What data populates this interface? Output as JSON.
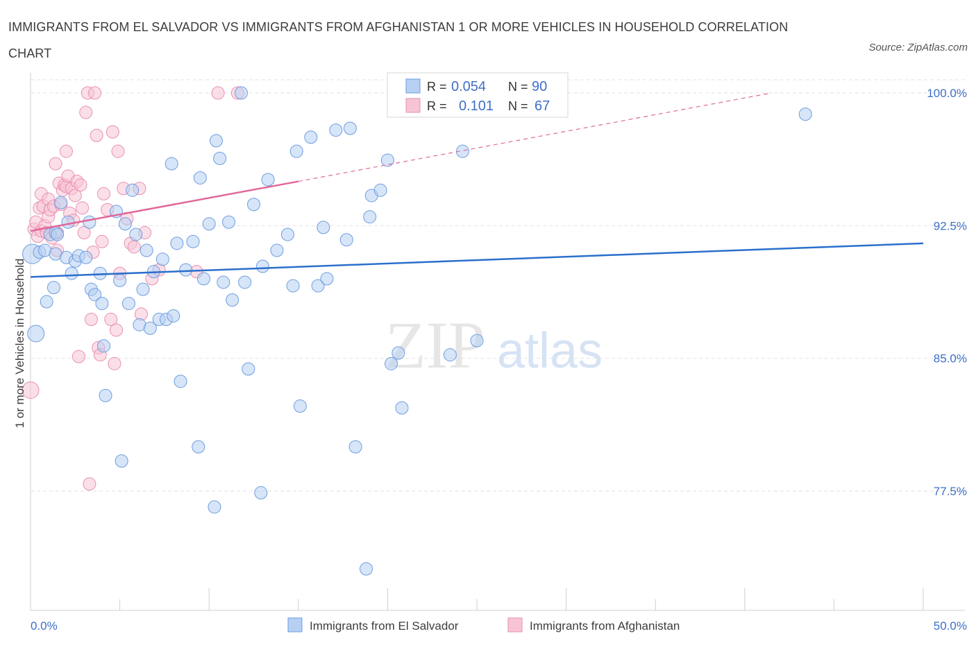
{
  "title": "IMMIGRANTS FROM EL SALVADOR VS IMMIGRANTS FROM AFGHANISTAN 1 OR MORE VEHICLES IN HOUSEHOLD CORRELATION CHART",
  "source": "Source: ZipAtlas.com",
  "watermark": {
    "zip": "ZIP",
    "atlas": "atlas"
  },
  "colors": {
    "blue": "#6d9de0",
    "blue_fill": "#b7cff2",
    "blue_line": "#2a6fcc",
    "pink": "#e98fae",
    "pink_fill": "#f7c4d6",
    "pink_line": "#e0689a",
    "tick": "#3d6fc9"
  },
  "legend_box": {
    "rows": [
      {
        "r_label": "R =",
        "r_value": "0.054",
        "n_label": "N =",
        "n_value": "90"
      },
      {
        "r_label": "R =",
        "r_value": "0.101",
        "n_label": "N =",
        "n_value": "67"
      }
    ]
  },
  "bottom_legend": [
    "Immigrants from El Salvador",
    "Immigrants from Afghanistan"
  ],
  "chart_data": {
    "type": "scatter",
    "title": "IMMIGRANTS FROM EL SALVADOR VS IMMIGRANTS FROM AFGHANISTAN 1 OR MORE VEHICLES IN HOUSEHOLD CORRELATION CHART",
    "xlabel": "",
    "ylabel": "1 or more Vehicles in Household",
    "xlim": [
      0,
      50
    ],
    "ylim": [
      70,
      101
    ],
    "x_tick_labels": [
      "0.0%",
      "50.0%"
    ],
    "y_ticks": [
      77.5,
      85.0,
      92.5,
      100.0
    ],
    "y_tick_labels": [
      "77.5%",
      "85.0%",
      "92.5%",
      "100.0%"
    ],
    "grid": true,
    "series": [
      {
        "name": "Immigrants from El Salvador",
        "R": 0.054,
        "N": 90,
        "trend": {
          "x": [
            0,
            50
          ],
          "y": [
            89.6,
            91.5
          ]
        },
        "points": [
          [
            0.1,
            90.9
          ],
          [
            0.3,
            86.4
          ],
          [
            0.5,
            91.0
          ],
          [
            0.8,
            91.1
          ],
          [
            0.9,
            88.2
          ],
          [
            1.1,
            92.0
          ],
          [
            1.3,
            89.0
          ],
          [
            1.4,
            92.1
          ],
          [
            1.4,
            90.9
          ],
          [
            1.5,
            92.0
          ],
          [
            1.7,
            93.8
          ],
          [
            2.0,
            90.7
          ],
          [
            2.1,
            92.7
          ],
          [
            2.3,
            89.8
          ],
          [
            2.5,
            90.5
          ],
          [
            2.7,
            90.8
          ],
          [
            3.1,
            90.7
          ],
          [
            3.3,
            92.7
          ],
          [
            3.4,
            88.9
          ],
          [
            3.6,
            88.6
          ],
          [
            3.9,
            89.8
          ],
          [
            4.0,
            88.1
          ],
          [
            4.1,
            85.7
          ],
          [
            4.2,
            82.9
          ],
          [
            4.8,
            93.3
          ],
          [
            5.0,
            89.4
          ],
          [
            5.1,
            79.2
          ],
          [
            5.3,
            92.6
          ],
          [
            5.5,
            88.1
          ],
          [
            5.7,
            94.5
          ],
          [
            5.9,
            92.0
          ],
          [
            6.1,
            86.9
          ],
          [
            6.3,
            88.9
          ],
          [
            6.5,
            91.1
          ],
          [
            6.7,
            86.7
          ],
          [
            6.9,
            89.9
          ],
          [
            7.2,
            87.2
          ],
          [
            7.4,
            90.6
          ],
          [
            7.6,
            87.2
          ],
          [
            7.9,
            96.0
          ],
          [
            8.0,
            87.4
          ],
          [
            8.2,
            91.5
          ],
          [
            8.4,
            83.7
          ],
          [
            8.7,
            90.0
          ],
          [
            9.1,
            91.6
          ],
          [
            9.4,
            80.0
          ],
          [
            9.5,
            95.2
          ],
          [
            9.7,
            89.5
          ],
          [
            10.0,
            92.6
          ],
          [
            10.3,
            76.6
          ],
          [
            10.4,
            97.3
          ],
          [
            10.6,
            96.3
          ],
          [
            10.8,
            89.3
          ],
          [
            11.1,
            92.7
          ],
          [
            11.3,
            88.3
          ],
          [
            11.8,
            100.0
          ],
          [
            12.0,
            89.3
          ],
          [
            12.2,
            84.4
          ],
          [
            12.5,
            93.7
          ],
          [
            12.9,
            77.4
          ],
          [
            13.0,
            90.2
          ],
          [
            13.3,
            95.1
          ],
          [
            13.8,
            91.1
          ],
          [
            14.4,
            92.0
          ],
          [
            14.7,
            89.1
          ],
          [
            14.9,
            96.7
          ],
          [
            15.1,
            82.3
          ],
          [
            15.7,
            97.5
          ],
          [
            16.1,
            89.1
          ],
          [
            16.4,
            92.4
          ],
          [
            16.6,
            89.5
          ],
          [
            17.1,
            97.9
          ],
          [
            17.7,
            91.7
          ],
          [
            17.9,
            98.0
          ],
          [
            18.2,
            80.0
          ],
          [
            18.8,
            73.1
          ],
          [
            19.0,
            93.0
          ],
          [
            19.1,
            94.2
          ],
          [
            19.6,
            94.5
          ],
          [
            20.0,
            96.2
          ],
          [
            20.2,
            84.7
          ],
          [
            20.6,
            85.3
          ],
          [
            20.8,
            82.2
          ],
          [
            23.5,
            85.2
          ],
          [
            24.2,
            96.7
          ],
          [
            25.0,
            86.0
          ],
          [
            43.4,
            98.8
          ]
        ]
      },
      {
        "name": "Immigrants from Afghanistan",
        "R": 0.101,
        "N": 67,
        "trend": {
          "x": [
            0,
            15
          ],
          "y": [
            92.2,
            95.0
          ]
        },
        "trend_dashed": {
          "x": [
            15,
            41.5
          ],
          "y": [
            95.0,
            100.0
          ]
        },
        "points": [
          [
            0.0,
            83.2
          ],
          [
            0.2,
            92.3
          ],
          [
            0.3,
            92.7
          ],
          [
            0.4,
            91.9
          ],
          [
            0.5,
            93.5
          ],
          [
            0.6,
            94.3
          ],
          [
            0.6,
            92.2
          ],
          [
            0.7,
            93.6
          ],
          [
            0.8,
            92.5
          ],
          [
            0.9,
            92.1
          ],
          [
            1.0,
            93.0
          ],
          [
            1.0,
            94.0
          ],
          [
            1.1,
            93.4
          ],
          [
            1.2,
            91.8
          ],
          [
            1.3,
            93.6
          ],
          [
            1.4,
            96.0
          ],
          [
            1.5,
            92.1
          ],
          [
            1.5,
            91.1
          ],
          [
            1.6,
            94.9
          ],
          [
            1.7,
            93.7
          ],
          [
            1.8,
            94.5
          ],
          [
            1.9,
            94.8
          ],
          [
            2.0,
            96.7
          ],
          [
            2.0,
            94.7
          ],
          [
            2.1,
            95.3
          ],
          [
            2.2,
            93.2
          ],
          [
            2.3,
            94.6
          ],
          [
            2.4,
            92.8
          ],
          [
            2.5,
            94.2
          ],
          [
            2.6,
            95.0
          ],
          [
            2.7,
            85.1
          ],
          [
            2.8,
            94.8
          ],
          [
            2.9,
            93.5
          ],
          [
            3.0,
            92.1
          ],
          [
            3.1,
            98.9
          ],
          [
            3.2,
            100.0
          ],
          [
            3.3,
            77.9
          ],
          [
            3.4,
            87.2
          ],
          [
            3.5,
            91.0
          ],
          [
            3.6,
            100.0
          ],
          [
            3.7,
            97.6
          ],
          [
            3.8,
            85.6
          ],
          [
            3.9,
            85.2
          ],
          [
            4.0,
            91.6
          ],
          [
            4.1,
            94.3
          ],
          [
            4.3,
            93.4
          ],
          [
            4.5,
            87.2
          ],
          [
            4.6,
            97.8
          ],
          [
            4.7,
            84.7
          ],
          [
            4.8,
            86.6
          ],
          [
            4.9,
            96.7
          ],
          [
            5.0,
            89.8
          ],
          [
            5.2,
            94.6
          ],
          [
            5.4,
            92.9
          ],
          [
            5.6,
            91.5
          ],
          [
            5.8,
            91.3
          ],
          [
            6.1,
            94.6
          ],
          [
            6.2,
            87.5
          ],
          [
            6.4,
            92.1
          ],
          [
            6.8,
            89.5
          ],
          [
            7.2,
            90.0
          ],
          [
            9.3,
            89.9
          ],
          [
            10.5,
            100.0
          ],
          [
            11.6,
            100.0
          ]
        ]
      }
    ]
  }
}
